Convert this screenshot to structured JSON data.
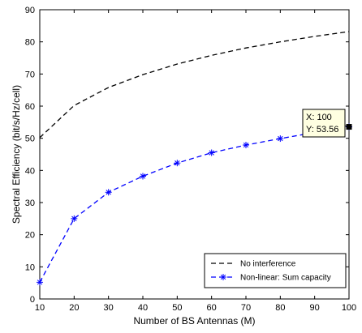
{
  "chart_data": {
    "type": "line",
    "title": "",
    "xlabel": "Number of BS Antennas (M)",
    "ylabel": "Spectral Efficiency (bit/s/Hz/cell)",
    "xlim": [
      10,
      100
    ],
    "ylim": [
      0,
      90
    ],
    "xticks": [
      10,
      20,
      30,
      40,
      50,
      60,
      70,
      80,
      90,
      100
    ],
    "yticks": [
      0,
      10,
      20,
      30,
      40,
      50,
      60,
      70,
      80,
      90
    ],
    "grid": false,
    "legend_position": "bottom-right",
    "series": [
      {
        "name": "No interference",
        "color": "#000000",
        "line_style": "dashed",
        "marker": "none",
        "x": [
          10,
          20,
          30,
          40,
          50,
          60,
          70,
          80,
          90,
          100
        ],
        "y": [
          50.2,
          60.2,
          65.8,
          69.8,
          73.1,
          75.8,
          78.1,
          80.0,
          81.7,
          83.2
        ]
      },
      {
        "name": "Non-linear: Sum capacity",
        "color": "#0000ff",
        "line_style": "dashed",
        "marker": "asterisk",
        "x": [
          10,
          20,
          30,
          40,
          50,
          60,
          70,
          80,
          90,
          100
        ],
        "y": [
          5.2,
          25.0,
          33.2,
          38.2,
          42.3,
          45.5,
          47.9,
          49.9,
          51.8,
          53.56
        ]
      }
    ],
    "datatip": {
      "x_text": "X: 100",
      "y_text": "Y: 53.56",
      "x": 100,
      "y": 53.56,
      "background": "#ffffe1"
    }
  }
}
